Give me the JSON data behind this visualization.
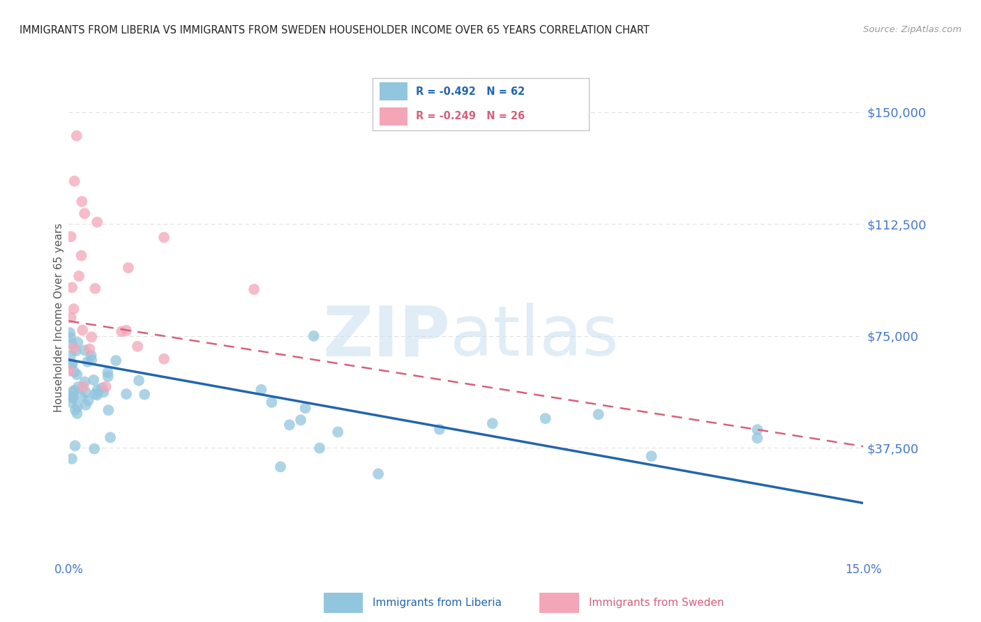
{
  "title": "IMMIGRANTS FROM LIBERIA VS IMMIGRANTS FROM SWEDEN HOUSEHOLDER INCOME OVER 65 YEARS CORRELATION CHART",
  "source": "Source: ZipAtlas.com",
  "ylabel": "Householder Income Over 65 years",
  "xlim": [
    0.0,
    0.15
  ],
  "ylim": [
    0,
    162500
  ],
  "yticks": [
    0,
    37500,
    75000,
    112500,
    150000
  ],
  "ytick_labels": [
    "",
    "$37,500",
    "$75,000",
    "$112,500",
    "$150,000"
  ],
  "watermark_zip": "ZIP",
  "watermark_atlas": "atlas",
  "legend_liberia_r": "-0.492",
  "legend_liberia_n": "62",
  "legend_sweden_r": "-0.249",
  "legend_sweden_n": "26",
  "color_liberia": "#92c5de",
  "color_sweden": "#f4a6b8",
  "color_liberia_line": "#2166ac",
  "color_sweden_line": "#d6607a",
  "color_axis_labels": "#4477cc",
  "background_color": "#ffffff",
  "grid_color": "#dddddd"
}
